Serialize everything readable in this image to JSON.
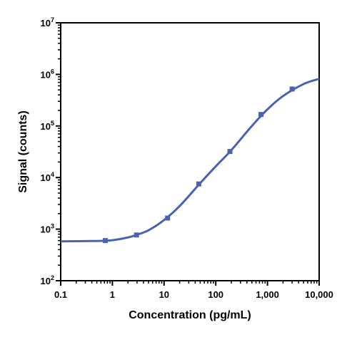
{
  "chart_data": {
    "type": "scatter",
    "xlabel": "Concentration (pg/mL)",
    "ylabel": "Signal (counts)",
    "x_scale": "log",
    "y_scale": "log",
    "xlim": [
      0.1,
      10000
    ],
    "ylim": [
      100,
      10000000
    ],
    "x_ticks": [
      "0.1",
      "1",
      "10",
      "100",
      "1,000",
      "10,000"
    ],
    "y_ticks": [
      {
        "base": "10",
        "exp": "2"
      },
      {
        "base": "10",
        "exp": "3"
      },
      {
        "base": "10",
        "exp": "4"
      },
      {
        "base": "10",
        "exp": "5"
      },
      {
        "base": "10",
        "exp": "6"
      },
      {
        "base": "10",
        "exp": "7"
      }
    ],
    "grid": false,
    "series": [
      {
        "points": [
          {
            "x": 0.73,
            "y": 600
          },
          {
            "x": 2.93,
            "y": 770
          },
          {
            "x": 11.7,
            "y": 1640
          },
          {
            "x": 46.9,
            "y": 7500
          },
          {
            "x": 188,
            "y": 32000
          },
          {
            "x": 750,
            "y": 167000
          },
          {
            "x": 3000,
            "y": 520000
          }
        ],
        "fit_curve": [
          {
            "x": 0.1,
            "y": 580
          },
          {
            "x": 0.5,
            "y": 590
          },
          {
            "x": 1,
            "y": 610
          },
          {
            "x": 2,
            "y": 690
          },
          {
            "x": 3,
            "y": 780
          },
          {
            "x": 5,
            "y": 950
          },
          {
            "x": 10,
            "y": 1500
          },
          {
            "x": 20,
            "y": 2800
          },
          {
            "x": 50,
            "y": 7800
          },
          {
            "x": 100,
            "y": 16500
          },
          {
            "x": 200,
            "y": 34000
          },
          {
            "x": 500,
            "y": 100000
          },
          {
            "x": 1000,
            "y": 210000
          },
          {
            "x": 2000,
            "y": 380000
          },
          {
            "x": 5000,
            "y": 650000
          },
          {
            "x": 10000,
            "y": 820000
          }
        ],
        "color": "#4a63b0",
        "marker": "square"
      }
    ]
  }
}
